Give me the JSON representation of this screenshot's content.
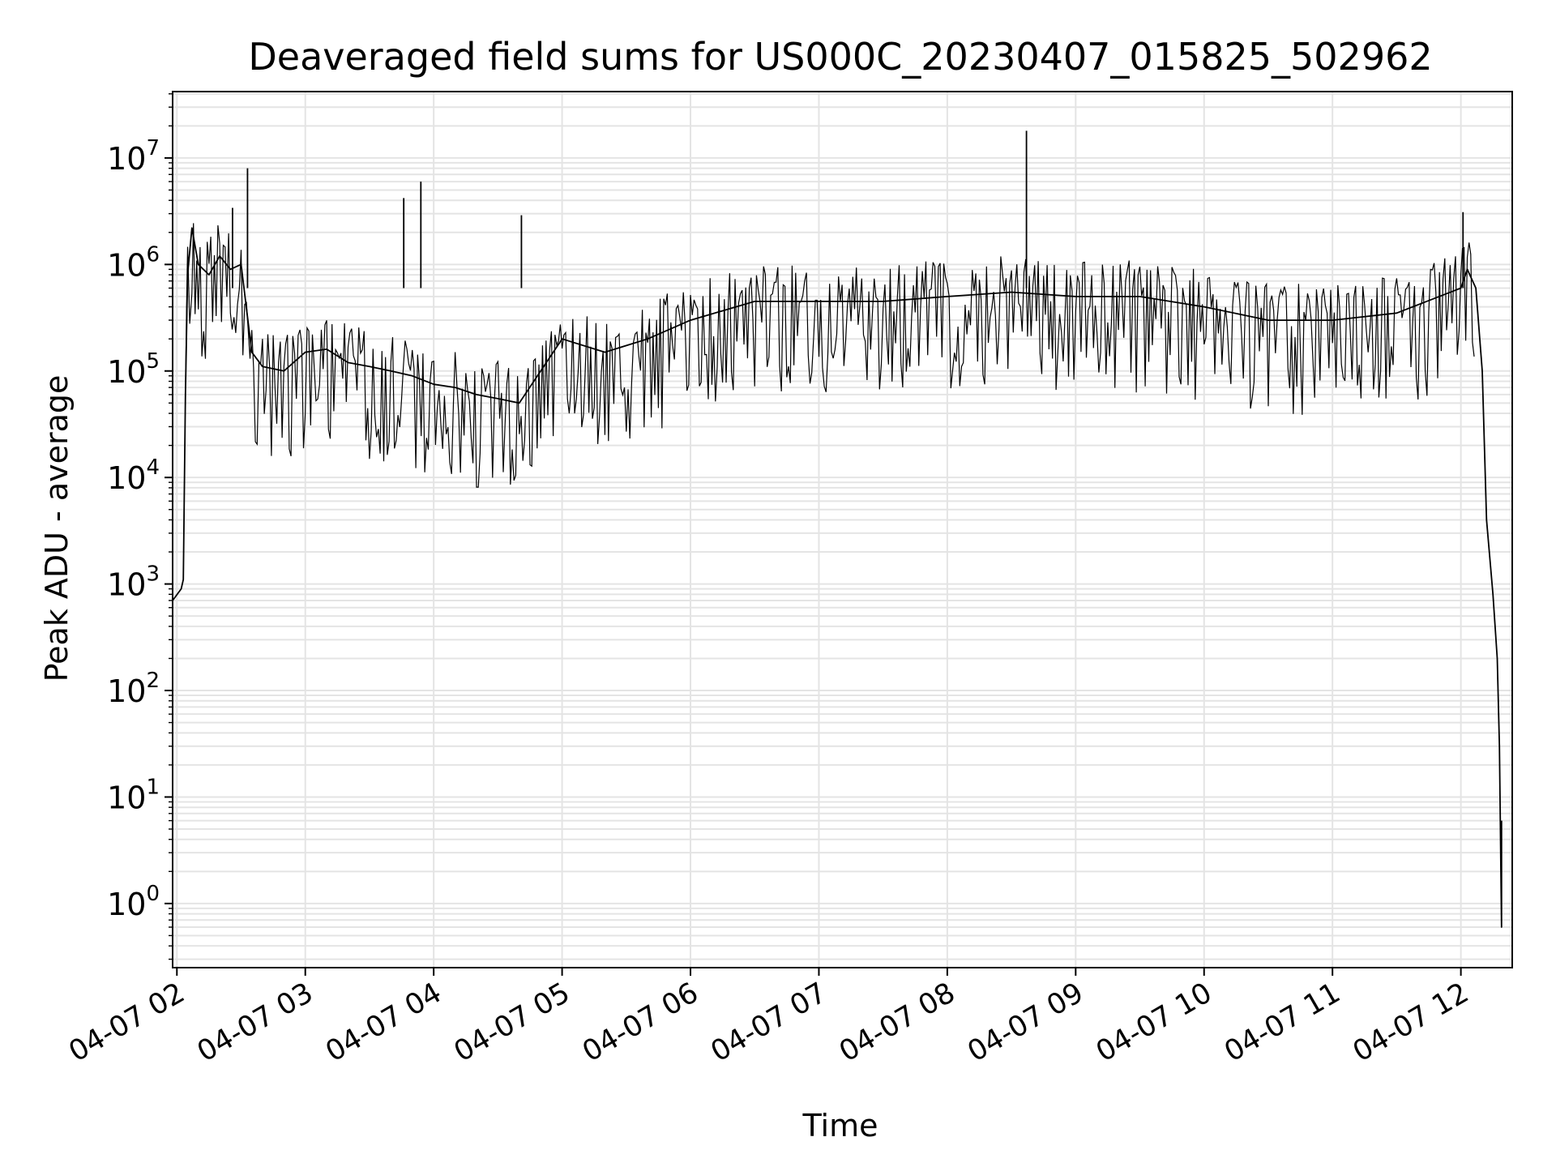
{
  "chart_data": {
    "type": "line",
    "title": "Deaveraged field sums for US000C_20230407_015825_502962",
    "xlabel": "Time",
    "ylabel": "Peak ADU - average",
    "yscale": "log",
    "ylim": [
      0.25,
      42000000
    ],
    "xlim": [
      "2023-04-07T01:58",
      "2023-04-07T12:24"
    ],
    "grid": true,
    "x_ticks": [
      {
        "at": "2023-04-07T02:00",
        "label": "04-07 02"
      },
      {
        "at": "2023-04-07T03:00",
        "label": "04-07 03"
      },
      {
        "at": "2023-04-07T04:00",
        "label": "04-07 04"
      },
      {
        "at": "2023-04-07T05:00",
        "label": "04-07 05"
      },
      {
        "at": "2023-04-07T06:00",
        "label": "04-07 06"
      },
      {
        "at": "2023-04-07T07:00",
        "label": "04-07 07"
      },
      {
        "at": "2023-04-07T08:00",
        "label": "04-07 08"
      },
      {
        "at": "2023-04-07T09:00",
        "label": "04-07 09"
      },
      {
        "at": "2023-04-07T10:00",
        "label": "04-07 10"
      },
      {
        "at": "2023-04-07T11:00",
        "label": "04-07 11"
      },
      {
        "at": "2023-04-07T12:00",
        "label": "04-07 12"
      }
    ],
    "y_ticks": [
      {
        "value": 1,
        "base": "10",
        "exp": "0"
      },
      {
        "value": 10,
        "base": "10",
        "exp": "1"
      },
      {
        "value": 100,
        "base": "10",
        "exp": "2"
      },
      {
        "value": 1000,
        "base": "10",
        "exp": "3"
      },
      {
        "value": 10000,
        "base": "10",
        "exp": "4"
      },
      {
        "value": 100000,
        "base": "10",
        "exp": "5"
      },
      {
        "value": 1000000,
        "base": "10",
        "exp": "6"
      },
      {
        "value": 10000000,
        "base": "10",
        "exp": "7"
      }
    ],
    "series": [
      {
        "color": "#000000",
        "points": [
          [
            "2023-04-07T01:58",
            700
          ],
          [
            "2023-04-07T02:02",
            900
          ],
          [
            "2023-04-07T02:03",
            1100
          ],
          [
            "2023-04-07T02:04",
            60000
          ],
          [
            "2023-04-07T02:05",
            800000
          ],
          [
            "2023-04-07T02:07",
            2200000
          ],
          [
            "2023-04-07T02:10",
            1000000
          ],
          [
            "2023-04-07T02:15",
            800000
          ],
          [
            "2023-04-07T02:20",
            1200000
          ],
          [
            "2023-04-07T02:25",
            900000
          ],
          [
            "2023-04-07T02:30",
            1000000
          ],
          [
            "2023-04-07T02:35",
            150000
          ],
          [
            "2023-04-07T02:40",
            110000
          ],
          [
            "2023-04-07T02:50",
            100000
          ],
          [
            "2023-04-07T03:00",
            150000
          ],
          [
            "2023-04-07T03:10",
            160000
          ],
          [
            "2023-04-07T03:20",
            120000
          ],
          [
            "2023-04-07T03:30",
            110000
          ],
          [
            "2023-04-07T03:40",
            100000
          ],
          [
            "2023-04-07T03:50",
            90000
          ],
          [
            "2023-04-07T04:00",
            75000
          ],
          [
            "2023-04-07T04:10",
            70000
          ],
          [
            "2023-04-07T04:20",
            60000
          ],
          [
            "2023-04-07T04:30",
            55000
          ],
          [
            "2023-04-07T04:40",
            50000
          ],
          [
            "2023-04-07T04:50",
            100000
          ],
          [
            "2023-04-07T05:00",
            200000
          ],
          [
            "2023-04-07T05:20",
            150000
          ],
          [
            "2023-04-07T05:40",
            200000
          ],
          [
            "2023-04-07T06:00",
            300000
          ],
          [
            "2023-04-07T06:30",
            450000
          ],
          [
            "2023-04-07T07:00",
            450000
          ],
          [
            "2023-04-07T07:30",
            450000
          ],
          [
            "2023-04-07T08:00",
            500000
          ],
          [
            "2023-04-07T08:30",
            550000
          ],
          [
            "2023-04-07T09:00",
            500000
          ],
          [
            "2023-04-07T09:30",
            500000
          ],
          [
            "2023-04-07T10:00",
            400000
          ],
          [
            "2023-04-07T10:30",
            300000
          ],
          [
            "2023-04-07T11:00",
            300000
          ],
          [
            "2023-04-07T11:30",
            350000
          ],
          [
            "2023-04-07T12:00",
            600000
          ],
          [
            "2023-04-07T12:03",
            900000
          ],
          [
            "2023-04-07T12:07",
            600000
          ],
          [
            "2023-04-07T12:10",
            100000
          ],
          [
            "2023-04-07T12:12",
            4000
          ],
          [
            "2023-04-07T12:15",
            800
          ],
          [
            "2023-04-07T12:17",
            200
          ],
          [
            "2023-04-07T12:18",
            30
          ],
          [
            "2023-04-07T12:19",
            0.6
          ],
          [
            "2023-04-07T12:19",
            6
          ]
        ],
        "spikes": [
          [
            "2023-04-07T02:26",
            3400000
          ],
          [
            "2023-04-07T02:33",
            8000000
          ],
          [
            "2023-04-07T03:46",
            4200000
          ],
          [
            "2023-04-07T03:54",
            6000000
          ],
          [
            "2023-04-07T04:41",
            2900000
          ],
          [
            "2023-04-07T08:37",
            18000000
          ],
          [
            "2023-04-07T12:01",
            3100000
          ]
        ]
      }
    ]
  }
}
